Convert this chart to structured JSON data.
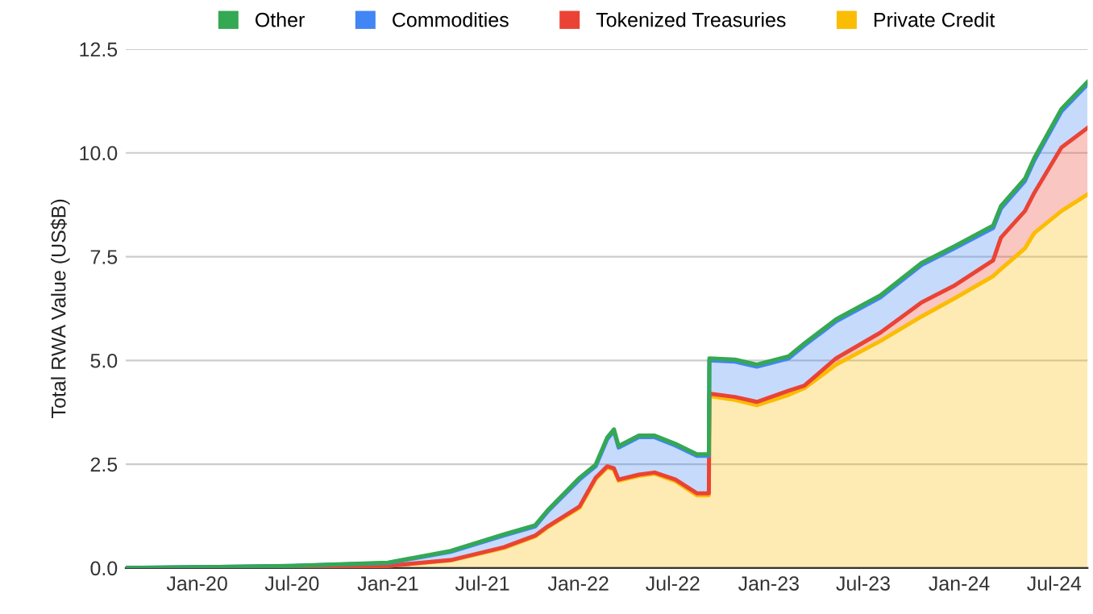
{
  "chart_data": {
    "type": "area",
    "stacked": true,
    "ylabel": "Total RWA Value (US$B)",
    "x": [
      "2019-08-17",
      "2020-01-01",
      "2020-07-01",
      "2021-01-01",
      "2021-05-01",
      "2021-08-11",
      "2021-10-10",
      "2021-11-03",
      "2022-01-03",
      "2022-02-03",
      "2022-02-25",
      "2022-03-10",
      "2022-03-19",
      "2022-04-27",
      "2022-05-27",
      "2022-07-06",
      "2022-08-16",
      "2022-09-08",
      "2022-09-09",
      "2022-10-28",
      "2022-12-09",
      "2023-02-08",
      "2023-03-10",
      "2023-05-10",
      "2023-08-03",
      "2023-10-21",
      "2023-12-21",
      "2024-03-06",
      "2024-03-21",
      "2024-05-06",
      "2024-05-24",
      "2024-07-15",
      "2024-09-03"
    ],
    "series": [
      {
        "name": "Private Credit",
        "color": "#fbbc04",
        "values": [
          0,
          0.01,
          0.02,
          0.05,
          0.18,
          0.48,
          0.76,
          0.98,
          1.45,
          2.14,
          2.42,
          2.37,
          2.1,
          2.22,
          2.27,
          2.09,
          1.75,
          1.75,
          4.14,
          4.05,
          3.92,
          4.17,
          4.33,
          4.9,
          5.47,
          6.06,
          6.48,
          7.03,
          7.2,
          7.7,
          8.07,
          8.6,
          9.0
        ]
      },
      {
        "name": "Tokenized Treasuries",
        "color": "#ea4335",
        "values": [
          0,
          0,
          0,
          0,
          0.01,
          0.02,
          0.02,
          0.02,
          0.03,
          0.03,
          0.03,
          0.03,
          0.03,
          0.03,
          0.03,
          0.04,
          0.05,
          0.05,
          0.06,
          0.07,
          0.08,
          0.1,
          0.06,
          0.15,
          0.2,
          0.34,
          0.31,
          0.38,
          0.76,
          0.9,
          0.97,
          1.53,
          1.6
        ]
      },
      {
        "name": "Commodities",
        "color": "#4285f4",
        "values": [
          0,
          0.01,
          0.03,
          0.07,
          0.2,
          0.28,
          0.22,
          0.36,
          0.65,
          0.28,
          0.65,
          0.9,
          0.77,
          0.9,
          0.85,
          0.82,
          0.9,
          0.9,
          0.8,
          0.85,
          0.85,
          0.78,
          0.97,
          0.89,
          0.85,
          0.9,
          0.9,
          0.78,
          0.7,
          0.72,
          0.78,
          0.87,
          1.05
        ]
      },
      {
        "name": "Other",
        "color": "#34a853",
        "values": [
          0,
          0,
          0,
          0.01,
          0.02,
          0.03,
          0.03,
          0.03,
          0.04,
          0.04,
          0.04,
          0.04,
          0.04,
          0.04,
          0.04,
          0.04,
          0.04,
          0.04,
          0.05,
          0.05,
          0.05,
          0.05,
          0.05,
          0.05,
          0.05,
          0.05,
          0.05,
          0.06,
          0.06,
          0.06,
          0.06,
          0.06,
          0.06
        ]
      }
    ],
    "xlim": [
      "2019-08-17",
      "2024-09-03"
    ],
    "xticks": [
      {
        "value": "2020-01-01",
        "label": "Jan-20"
      },
      {
        "value": "2020-07-01",
        "label": "Jul-20"
      },
      {
        "value": "2021-01-01",
        "label": "Jan-21"
      },
      {
        "value": "2021-07-01",
        "label": "Jul-21"
      },
      {
        "value": "2022-01-01",
        "label": "Jan-22"
      },
      {
        "value": "2022-07-01",
        "label": "Jul-22"
      },
      {
        "value": "2023-01-01",
        "label": "Jan-23"
      },
      {
        "value": "2023-07-01",
        "label": "Jul-23"
      },
      {
        "value": "2024-01-01",
        "label": "Jan-24"
      },
      {
        "value": "2024-07-01",
        "label": "Jul-24"
      }
    ],
    "ylim": [
      0,
      12.5
    ],
    "yticks": [
      {
        "value": 0,
        "label": "0.0"
      },
      {
        "value": 2.5,
        "label": "2.5"
      },
      {
        "value": 5,
        "label": "5.0"
      },
      {
        "value": 7.5,
        "label": "7.5"
      },
      {
        "value": 10,
        "label": "10.0"
      },
      {
        "value": 12.5,
        "label": "12.5"
      }
    ],
    "grid": "y",
    "legend": "top"
  }
}
